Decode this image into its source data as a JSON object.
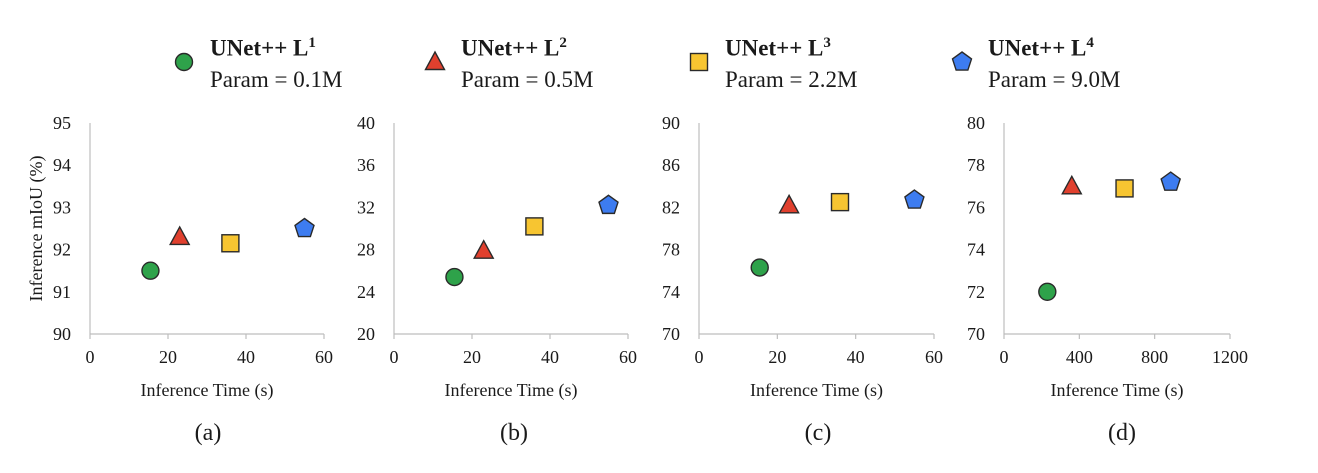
{
  "legend": [
    {
      "name": "UNet++ L",
      "sup": "1",
      "param": "Param = 0.1M",
      "marker": "circle",
      "color": "#2ea24a"
    },
    {
      "name": "UNet++ L",
      "sup": "2",
      "param": "Param = 0.5M",
      "marker": "triangle",
      "color": "#e0402e"
    },
    {
      "name": "UNet++ L",
      "sup": "3",
      "param": "Param = 2.2M",
      "marker": "square",
      "color": "#f7c531"
    },
    {
      "name": "UNet++ L",
      "sup": "4",
      "param": "Param = 9.0M",
      "marker": "pentagon",
      "color": "#3d7cf0"
    }
  ],
  "chart_data": [
    {
      "type": "scatter",
      "caption": "(a)",
      "xlabel": "Inference Time (s)",
      "ylabel": "Inference mIoU (%)",
      "xlim": [
        0,
        60
      ],
      "ylim": [
        90,
        95
      ],
      "xticks": [
        0,
        20,
        40,
        60
      ],
      "yticks": [
        90,
        91,
        92,
        93,
        94,
        95
      ],
      "points": [
        {
          "x": 15.5,
          "y": 91.5
        },
        {
          "x": 23,
          "y": 92.3
        },
        {
          "x": 36,
          "y": 92.15
        },
        {
          "x": 55,
          "y": 92.5
        }
      ]
    },
    {
      "type": "scatter",
      "caption": "(b)",
      "xlabel": "Inference Time (s)",
      "ylabel": "",
      "xlim": [
        0,
        60
      ],
      "ylim": [
        20,
        40
      ],
      "xticks": [
        0,
        20,
        40,
        60
      ],
      "yticks": [
        20,
        24,
        28,
        32,
        36,
        40
      ],
      "points": [
        {
          "x": 15.5,
          "y": 25.4
        },
        {
          "x": 23,
          "y": 27.9
        },
        {
          "x": 36,
          "y": 30.2
        },
        {
          "x": 55,
          "y": 32.2
        }
      ]
    },
    {
      "type": "scatter",
      "caption": "(c)",
      "xlabel": "Inference Time (s)",
      "ylabel": "",
      "xlim": [
        0,
        60
      ],
      "ylim": [
        70,
        90
      ],
      "xticks": [
        0,
        20,
        40,
        60
      ],
      "yticks": [
        70,
        74,
        78,
        82,
        86,
        90
      ],
      "points": [
        {
          "x": 15.5,
          "y": 76.3
        },
        {
          "x": 23,
          "y": 82.2
        },
        {
          "x": 36,
          "y": 82.5
        },
        {
          "x": 55,
          "y": 82.7
        }
      ]
    },
    {
      "type": "scatter",
      "caption": "(d)",
      "xlabel": "Inference Time (s)",
      "ylabel": "",
      "xlim": [
        0,
        1200
      ],
      "ylim": [
        70,
        80
      ],
      "xticks": [
        0,
        400,
        800,
        1200
      ],
      "yticks": [
        70,
        72,
        74,
        76,
        78,
        80
      ],
      "points": [
        {
          "x": 230,
          "y": 72.0
        },
        {
          "x": 360,
          "y": 77.0
        },
        {
          "x": 640,
          "y": 76.9
        },
        {
          "x": 885,
          "y": 77.2
        }
      ]
    }
  ]
}
